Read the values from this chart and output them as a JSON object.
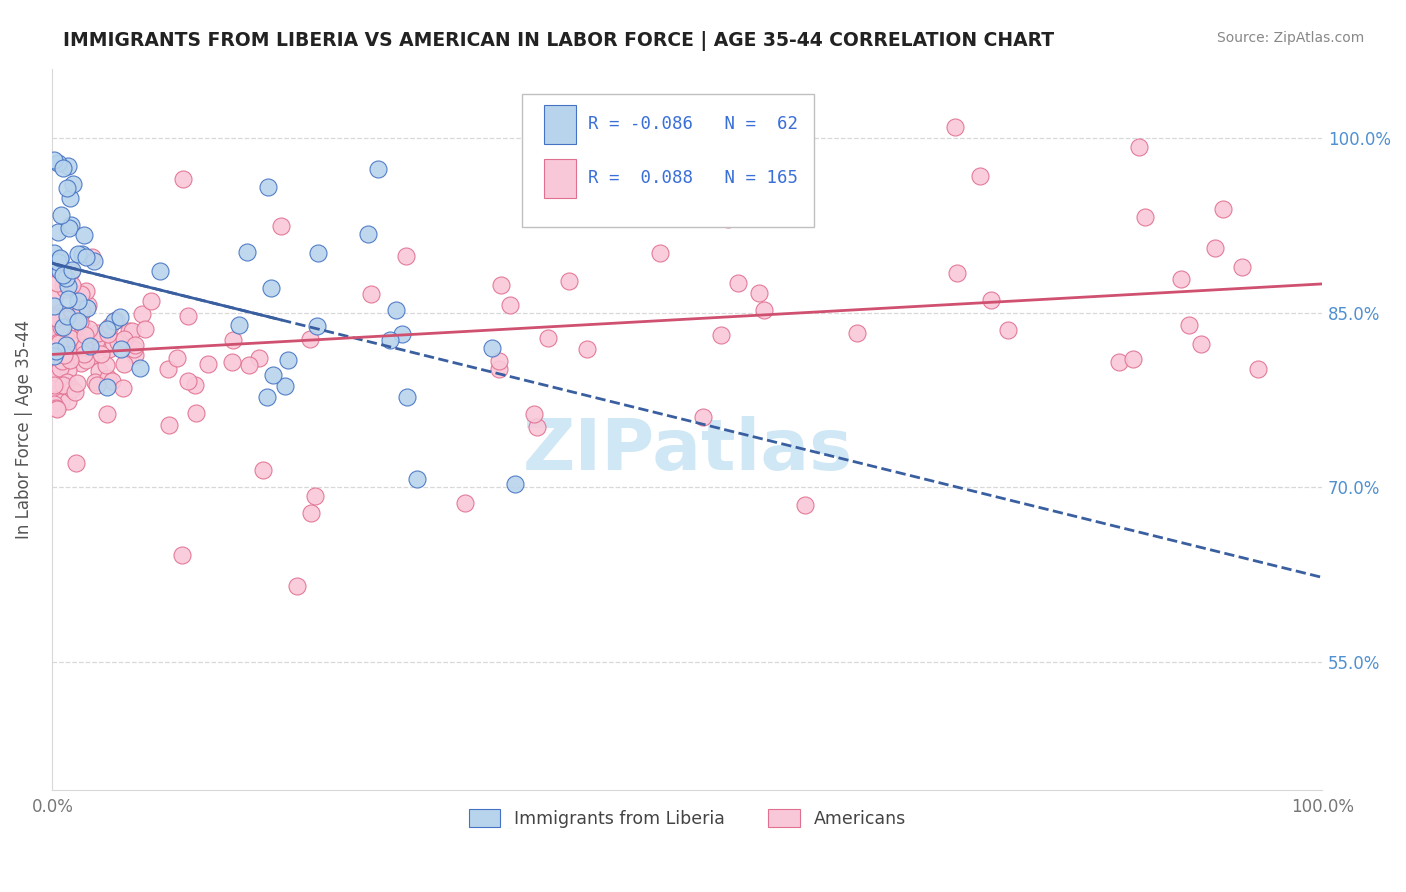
{
  "title": "IMMIGRANTS FROM LIBERIA VS AMERICAN IN LABOR FORCE | AGE 35-44 CORRELATION CHART",
  "source": "Source: ZipAtlas.com",
  "ylabel": "In Labor Force | Age 35-44",
  "xlim": [
    0.0,
    1.0
  ],
  "ylim": [
    0.44,
    1.06
  ],
  "yticks": [
    0.55,
    0.7,
    0.85,
    1.0
  ],
  "ytick_labels": [
    "55.0%",
    "70.0%",
    "85.0%",
    "100.0%"
  ],
  "r_blue": -0.086,
  "n_blue": 62,
  "r_pink": 0.088,
  "n_pink": 165,
  "legend_label_blue": "Immigrants from Liberia",
  "legend_label_pink": "Americans",
  "blue_face_color": "#b8d4ec",
  "blue_edge_color": "#4472c4",
  "pink_face_color": "#f9c8d8",
  "pink_edge_color": "#e07090",
  "blue_line_color": "#3a5fa0",
  "pink_line_color": "#d05070",
  "watermark_color": "#d0e8f5",
  "r_text_color": "#3a6fd8",
  "grid_color": "#d8d8d8",
  "title_color": "#222222",
  "source_color": "#888888",
  "ylabel_color": "#555555",
  "tick_color": "#777777",
  "right_tick_color": "#5090d0"
}
